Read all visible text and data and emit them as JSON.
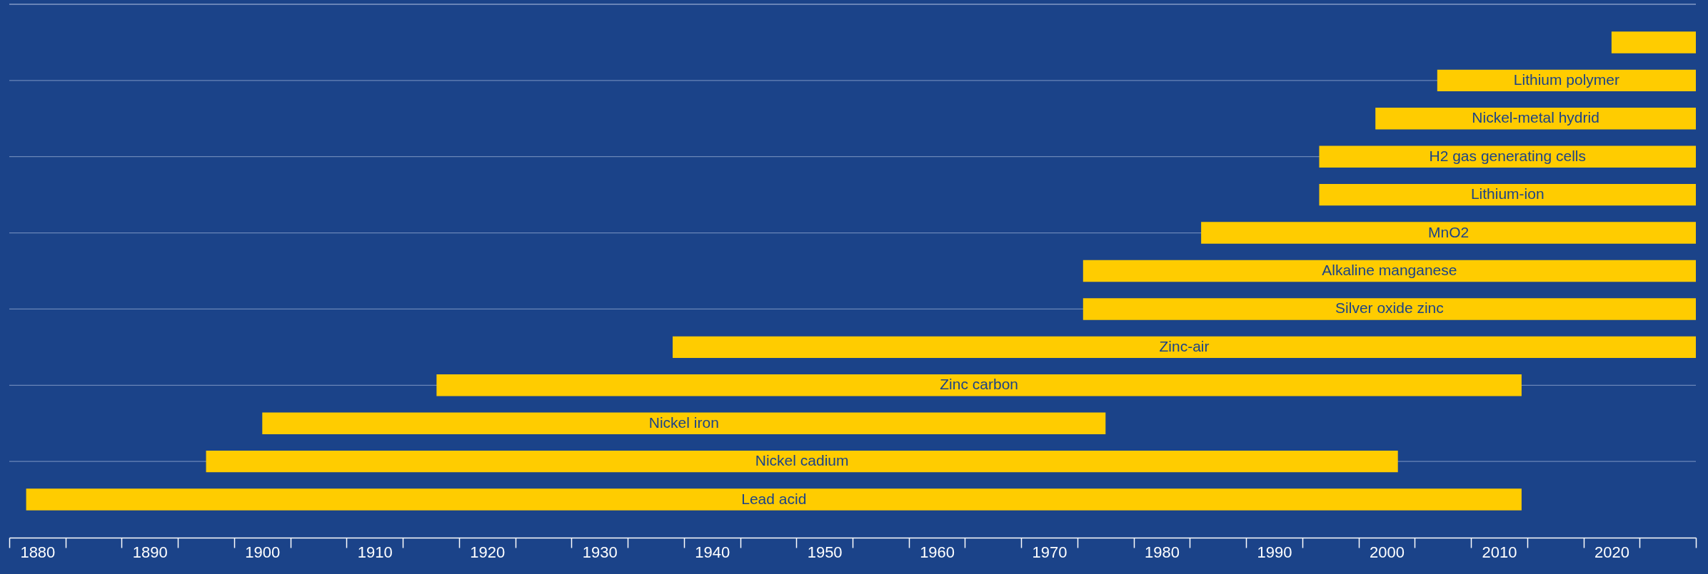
{
  "chart_data": {
    "type": "bar",
    "orientation": "horizontal",
    "categories": [
      null,
      "Lithium polymer",
      "Nickel-metal hydrid",
      "H2 gas generating cells",
      "Lithium-ion",
      "MnO2",
      "Alkaline manganese",
      "Silver oxide zinc",
      "Zinc-air",
      "Zinc carbon",
      "Nickel iron",
      "Nickel cadium",
      "Lead acid"
    ],
    "base": [
      2020,
      2004.5,
      1999,
      1994,
      1994,
      1983.5,
      1973,
      1973,
      1936.5,
      1915.5,
      1900,
      1895,
      1879
    ],
    "values": [
      7.5,
      23,
      28.5,
      33.5,
      33.5,
      44,
      54.5,
      54.5,
      91,
      96.5,
      75,
      106,
      133
    ],
    "color": "#ffcc00",
    "xlim": [
      1877.5,
      2027.5
    ],
    "xticks": [
      {
        "value": 1877.5,
        "label": null
      },
      1880,
      {
        "value": 1882.5,
        "label": null
      },
      {
        "value": 1887.5,
        "label": null
      },
      1890,
      {
        "value": 1892.5,
        "label": null
      },
      {
        "value": 1897.5,
        "label": null
      },
      1900,
      {
        "value": 1902.5,
        "label": null
      },
      {
        "value": 1907.5,
        "label": null
      },
      1910,
      {
        "value": 1912.5,
        "label": null
      },
      {
        "value": 1917.5,
        "label": null
      },
      1920,
      {
        "value": 1922.5,
        "label": null
      },
      {
        "value": 1927.5,
        "label": null
      },
      1930,
      {
        "value": 1932.5,
        "label": null
      },
      {
        "value": 1937.5,
        "label": null
      },
      1940,
      {
        "value": 1942.5,
        "label": null
      },
      {
        "value": 1947.5,
        "label": null
      },
      1950,
      {
        "value": 1952.5,
        "label": null
      },
      {
        "value": 1957.5,
        "label": null
      },
      1960,
      {
        "value": 1962.5,
        "label": null
      },
      {
        "value": 1967.5,
        "label": null
      },
      1970,
      {
        "value": 1972.5,
        "label": null
      },
      {
        "value": 1977.5,
        "label": null
      },
      1980,
      {
        "value": 1982.5,
        "label": null
      },
      {
        "value": 1987.5,
        "label": null
      },
      1990,
      {
        "value": 1992.5,
        "label": null
      },
      {
        "value": 1997.5,
        "label": null
      },
      2000,
      {
        "value": 2002.5,
        "label": null
      },
      {
        "value": 2007.5,
        "label": null
      },
      2010,
      {
        "value": 2012.5,
        "label": null
      },
      {
        "value": 2017.5,
        "label": null
      },
      2020,
      {
        "value": 2022.5,
        "label": null
      },
      {
        "value": 2027.5,
        "label": null
      }
    ],
    "grid": "y",
    "tick_labels": "x"
  }
}
